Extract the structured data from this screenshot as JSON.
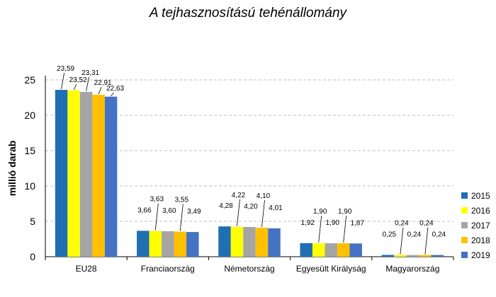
{
  "chart_data": {
    "type": "bar",
    "title": "A tejhasznosítású tehénállomány",
    "ylabel": "millió darab",
    "xlabel": "",
    "ylim": [
      0,
      25
    ],
    "yticks": [
      0,
      5,
      10,
      15,
      20,
      25
    ],
    "grid": true,
    "legend_position": "right",
    "categories": [
      "EU28",
      "Franciaország",
      "Németország",
      "Egyesült Királyság",
      "Magyarország"
    ],
    "series": [
      {
        "name": "2015",
        "color": "#1F6FB2",
        "values": [
          23.59,
          3.66,
          4.28,
          1.92,
          0.25
        ],
        "labels": [
          "23,59",
          "3,66",
          "4,28",
          "1,92",
          "0,25"
        ]
      },
      {
        "name": "2016",
        "color": "#FFFF00",
        "values": [
          23.52,
          3.63,
          4.22,
          1.9,
          0.24
        ],
        "labels": [
          "23,52",
          "3,63",
          "4,22",
          "1,90",
          "0,24"
        ]
      },
      {
        "name": "2017",
        "color": "#A5A5A5",
        "values": [
          23.31,
          3.6,
          4.2,
          1.9,
          0.24
        ],
        "labels": [
          "23,31",
          "3,60",
          "4,20",
          "1,90",
          "0,24"
        ]
      },
      {
        "name": "2018",
        "color": "#FFC000",
        "values": [
          22.91,
          3.55,
          4.1,
          1.9,
          0.24
        ],
        "labels": [
          "22,91",
          "3,55",
          "4,10",
          "1,90",
          "0,24"
        ]
      },
      {
        "name": "2019",
        "color": "#4472C4",
        "values": [
          22.63,
          3.49,
          4.01,
          1.87,
          0.24
        ],
        "labels": [
          "22,63",
          "3,49",
          "4,01",
          "1,87",
          "0,24"
        ]
      }
    ]
  }
}
